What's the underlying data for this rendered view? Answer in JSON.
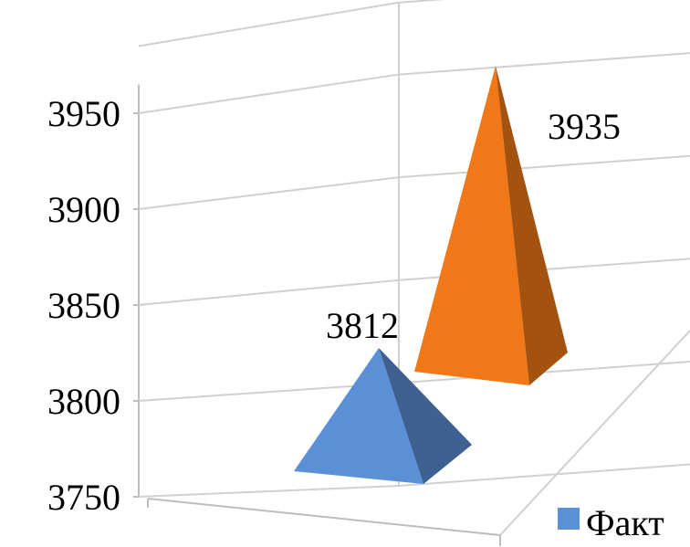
{
  "chart_data": {
    "type": "bar",
    "bar_shape": "pyramid-3d",
    "categories": [
      "",
      ""
    ],
    "series": [
      {
        "name": "Факт",
        "values": [
          3812,
          null
        ],
        "color": "#5b8fd6"
      },
      {
        "name": "",
        "values": [
          null,
          3935
        ],
        "color": "#f07818"
      }
    ],
    "data_labels": [
      "3812",
      "3935"
    ],
    "y_ticks": [
      "3750",
      "3800",
      "3850",
      "3900",
      "3950"
    ],
    "ylim": [
      3750,
      3985
    ],
    "grid": true,
    "legend": {
      "position": "bottom-right",
      "entries": [
        "Факт"
      ]
    },
    "title": "",
    "xlabel": "",
    "ylabel": ""
  }
}
